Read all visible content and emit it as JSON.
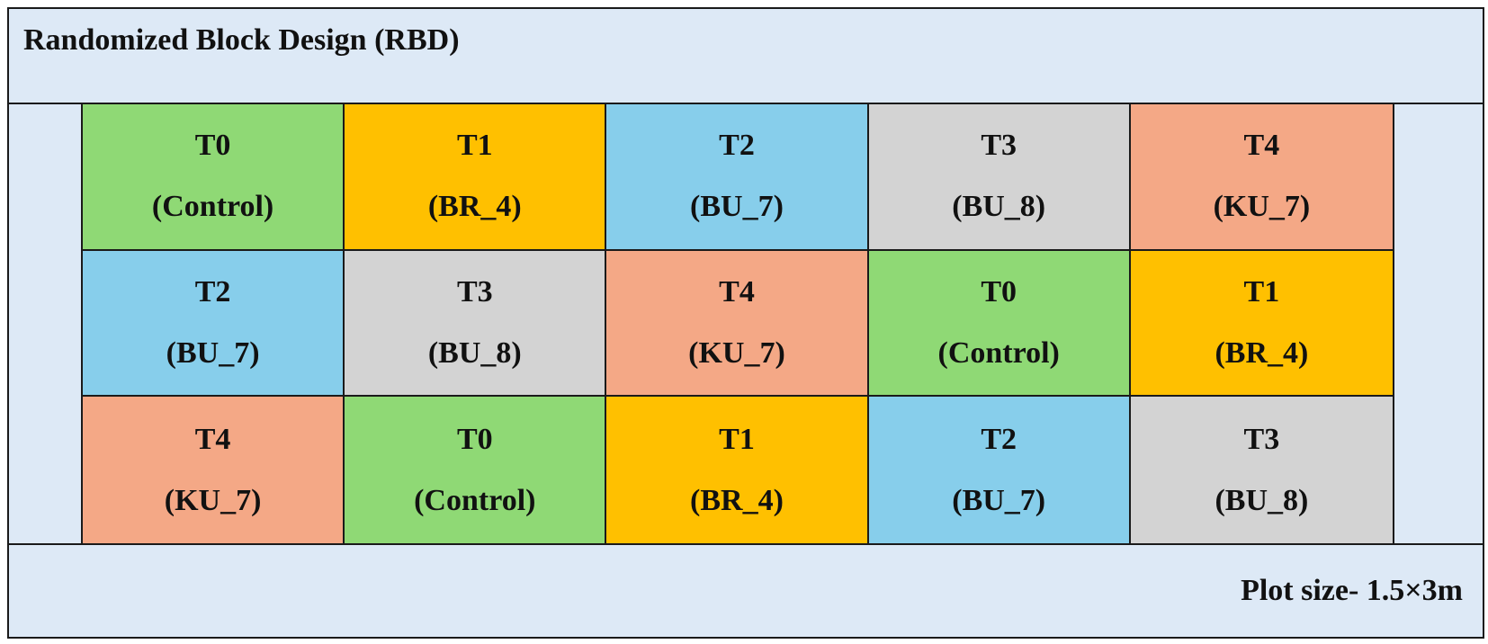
{
  "title": "Randomized  Block Design (RBD)",
  "plot_size": "Plot size- 1.5×3m",
  "colors": {
    "T0": "#8fd975",
    "T1": "#ffc000",
    "T2": "#87ceeb",
    "T3": "#d3d3d3",
    "T4": "#f4a886"
  },
  "grid": [
    [
      {
        "code": "T0",
        "name": "(Control)"
      },
      {
        "code": "T1",
        "name": "(BR_4)"
      },
      {
        "code": "T2",
        "name": "(BU_7)"
      },
      {
        "code": "T3",
        "name": "(BU_8)"
      },
      {
        "code": "T4",
        "name": "(KU_7)"
      }
    ],
    [
      {
        "code": "T2",
        "name": "(BU_7)"
      },
      {
        "code": "T3",
        "name": "(BU_8)"
      },
      {
        "code": "T4",
        "name": "(KU_7)"
      },
      {
        "code": "T0",
        "name": "(Control)"
      },
      {
        "code": "T1",
        "name": "(BR_4)"
      }
    ],
    [
      {
        "code": "T4",
        "name": "(KU_7)"
      },
      {
        "code": "T0",
        "name": "(Control)"
      },
      {
        "code": "T1",
        "name": "(BR_4)"
      },
      {
        "code": "T2",
        "name": "(BU_7)"
      },
      {
        "code": "T3",
        "name": "(BU_8)"
      }
    ]
  ]
}
